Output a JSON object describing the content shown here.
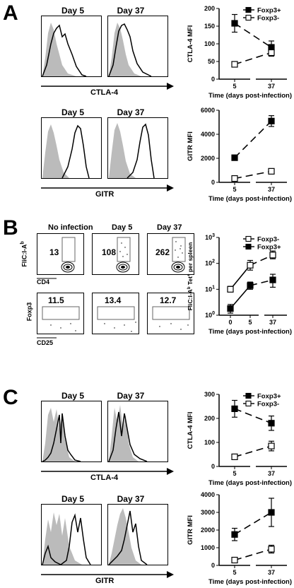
{
  "panels": {
    "A": {
      "letter": "A",
      "ctla4": {
        "days": [
          "Day 5",
          "Day 37"
        ],
        "xlabel": "CTLA-4"
      },
      "gitr": {
        "days": [
          "Day 5",
          "Day 37"
        ],
        "xlabel": "GITR"
      }
    },
    "B": {
      "letter": "B",
      "tet": {
        "conds": [
          "No infection",
          "Day 5",
          "Day 37"
        ],
        "counts": [
          "13",
          "108",
          "262"
        ],
        "ylabel": "FliC:I-A",
        "ysup": "b",
        "xlabel": "CD4"
      },
      "foxp3": {
        "pcts": [
          "11.5",
          "13.4",
          "12.7"
        ],
        "ylabel": "Foxp3",
        "xlabel": "CD25"
      }
    },
    "C": {
      "letter": "C",
      "ctla4": {
        "days": [
          "Day 5",
          "Day 37"
        ],
        "xlabel": "CTLA-4"
      },
      "gitr": {
        "days": [
          "Day 5",
          "Day 37"
        ],
        "xlabel": "GITR"
      }
    }
  },
  "chart_data": [
    {
      "id": "A-ctla4",
      "type": "line",
      "ylabel": "CTLA-4 MFI",
      "xlabel": "Time (days post-infection)",
      "x": [
        5,
        37
      ],
      "xticks": [
        "5",
        "37"
      ],
      "ylim": [
        0,
        200
      ],
      "yticks": [
        0,
        50,
        100,
        150,
        200
      ],
      "legend": "top-right",
      "series": [
        {
          "name": "Foxp3+",
          "values": [
            158,
            90
          ],
          "err": [
            25,
            18
          ],
          "marker": "filled"
        },
        {
          "name": "Foxp3-",
          "values": [
            42,
            75
          ],
          "err": [
            5,
            10
          ],
          "marker": "open"
        }
      ]
    },
    {
      "id": "A-gitr",
      "type": "line",
      "ylabel": "GITR MFI",
      "xlabel": "Time (days post-infection)",
      "x": [
        5,
        37
      ],
      "xticks": [
        "5",
        "37"
      ],
      "ylim": [
        0,
        6000
      ],
      "yticks": [
        0,
        2000,
        4000,
        6000
      ],
      "series": [
        {
          "values": [
            2050,
            5100
          ],
          "err": [
            80,
            450
          ],
          "marker": "filled"
        },
        {
          "values": [
            320,
            920
          ],
          "err": [
            60,
            90
          ],
          "marker": "open"
        }
      ]
    },
    {
      "id": "B-tet",
      "type": "line",
      "ylabel": "FliC:I-A",
      "ylabel_sup": "b",
      "ylabel_rest": " Tet",
      "ylabel_sup2": "+",
      "ylabel_tail": " per spleen",
      "xlabel": "Time (days post-infection)",
      "log": true,
      "x": [
        0,
        5,
        37
      ],
      "xticks": [
        "0",
        "5",
        "37"
      ],
      "ylim": [
        1,
        1000
      ],
      "yticks": [
        "10^0",
        "10^1",
        "10^2",
        "10^3"
      ],
      "legend": "top-right",
      "series": [
        {
          "name": "Foxp3-",
          "values": [
            10,
            85,
            210
          ],
          "errlo": [
            8,
            55,
            150
          ],
          "errhi": [
            13,
            130,
            300
          ],
          "marker": "open"
        },
        {
          "name": "Foxp3+",
          "values": [
            1.8,
            14,
            23
          ],
          "errlo": [
            1.2,
            10,
            12
          ],
          "errhi": [
            2.6,
            19,
            38
          ],
          "marker": "filled"
        }
      ]
    },
    {
      "id": "C-ctla4",
      "type": "line",
      "ylabel": "CTLA-4 MFI",
      "xlabel": "Time (days post-infection)",
      "x": [
        5,
        37
      ],
      "xticks": [
        "5",
        "37"
      ],
      "ylim": [
        0,
        300
      ],
      "yticks": [
        0,
        100,
        200,
        300
      ],
      "legend": "top-right",
      "series": [
        {
          "name": "Foxp3+",
          "values": [
            240,
            180
          ],
          "err": [
            35,
            30
          ],
          "marker": "filled"
        },
        {
          "name": "Foxp3-",
          "values": [
            40,
            85
          ],
          "err": [
            6,
            20
          ],
          "marker": "open"
        }
      ]
    },
    {
      "id": "C-gitr",
      "type": "line",
      "ylabel": "GITR MFI",
      "xlabel": "Time (days post-infection)",
      "x": [
        5,
        37
      ],
      "xticks": [
        "5",
        "37"
      ],
      "ylim": [
        0,
        4000
      ],
      "yticks": [
        0,
        1000,
        2000,
        3000,
        4000
      ],
      "series": [
        {
          "values": [
            1750,
            3000
          ],
          "err": [
            350,
            800
          ],
          "marker": "filled"
        },
        {
          "values": [
            300,
            920
          ],
          "err": [
            60,
            220
          ],
          "marker": "open"
        }
      ]
    }
  ]
}
